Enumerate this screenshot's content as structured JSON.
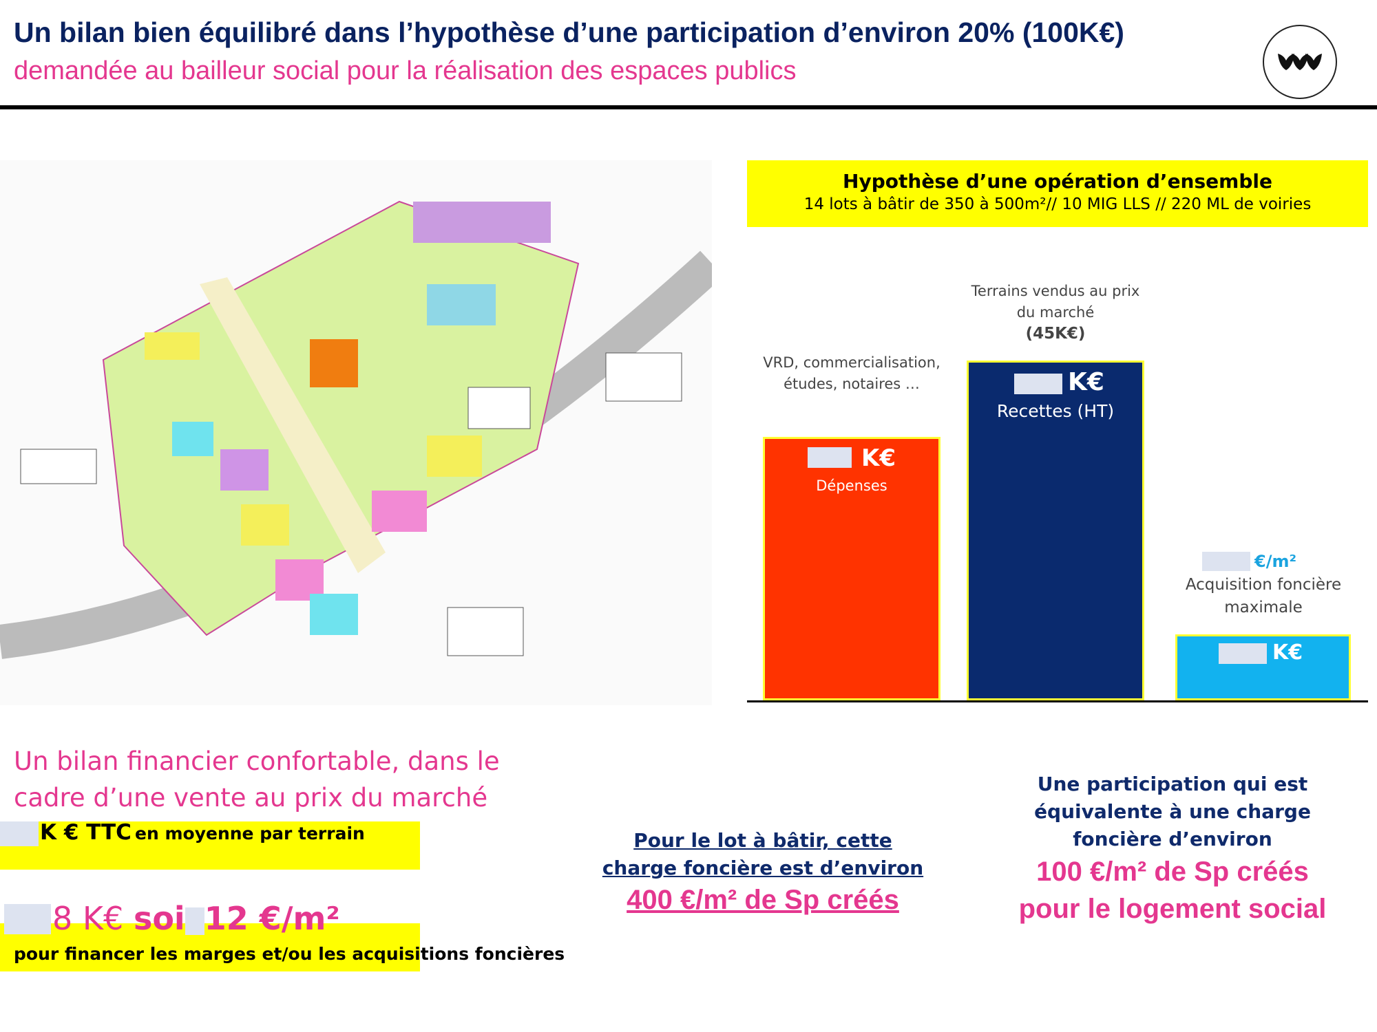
{
  "header": {
    "title": "Un bilan bien équilibré dans l’hypothèse d’une participation d’environ 20% (100K€)",
    "subtitle": "demandée au bailleur social pour la réalisation des espaces publics"
  },
  "hypothesis": {
    "title": "Hypothèse d’une opération d’ensemble",
    "detail": "14 lots à bâtir de 350 à 500m²// 10 MIG LLS // 220 ML de voiries"
  },
  "bars": [
    {
      "annotation": "VRD, commercialisation, études, notaires …",
      "unit": "K€",
      "label": "Dépenses"
    },
    {
      "annotation": "Terrains vendus au prix du marché",
      "annotation_value": "(45K€)",
      "unit": "K€",
      "label": "Recettes (HT)"
    },
    {
      "annotation_unit": "€/m²",
      "annotation": "Acquisition foncière maximale",
      "unit": "K€"
    }
  ],
  "summary": {
    "heading": "Un bilan financier confortable, dans le cadre d’une vente au prix du marché",
    "price": "K € TTC",
    "price_detail": "en moyenne par terrain",
    "margin": "8 K€",
    "connector": "soi",
    "per_m2": "12 €/m²",
    "purpose": "pour financer les marges et/ou les acquisitions foncières"
  },
  "lot_note": {
    "text": "Pour le lot à bâtir, cette charge foncière est d’environ",
    "charge": "400 €/m² de Sp créés"
  },
  "social_note": {
    "text": "Une participation qui est équivalente à une charge foncière d’environ",
    "charge": "100 €/m² de Sp créés pour le logement social"
  }
}
